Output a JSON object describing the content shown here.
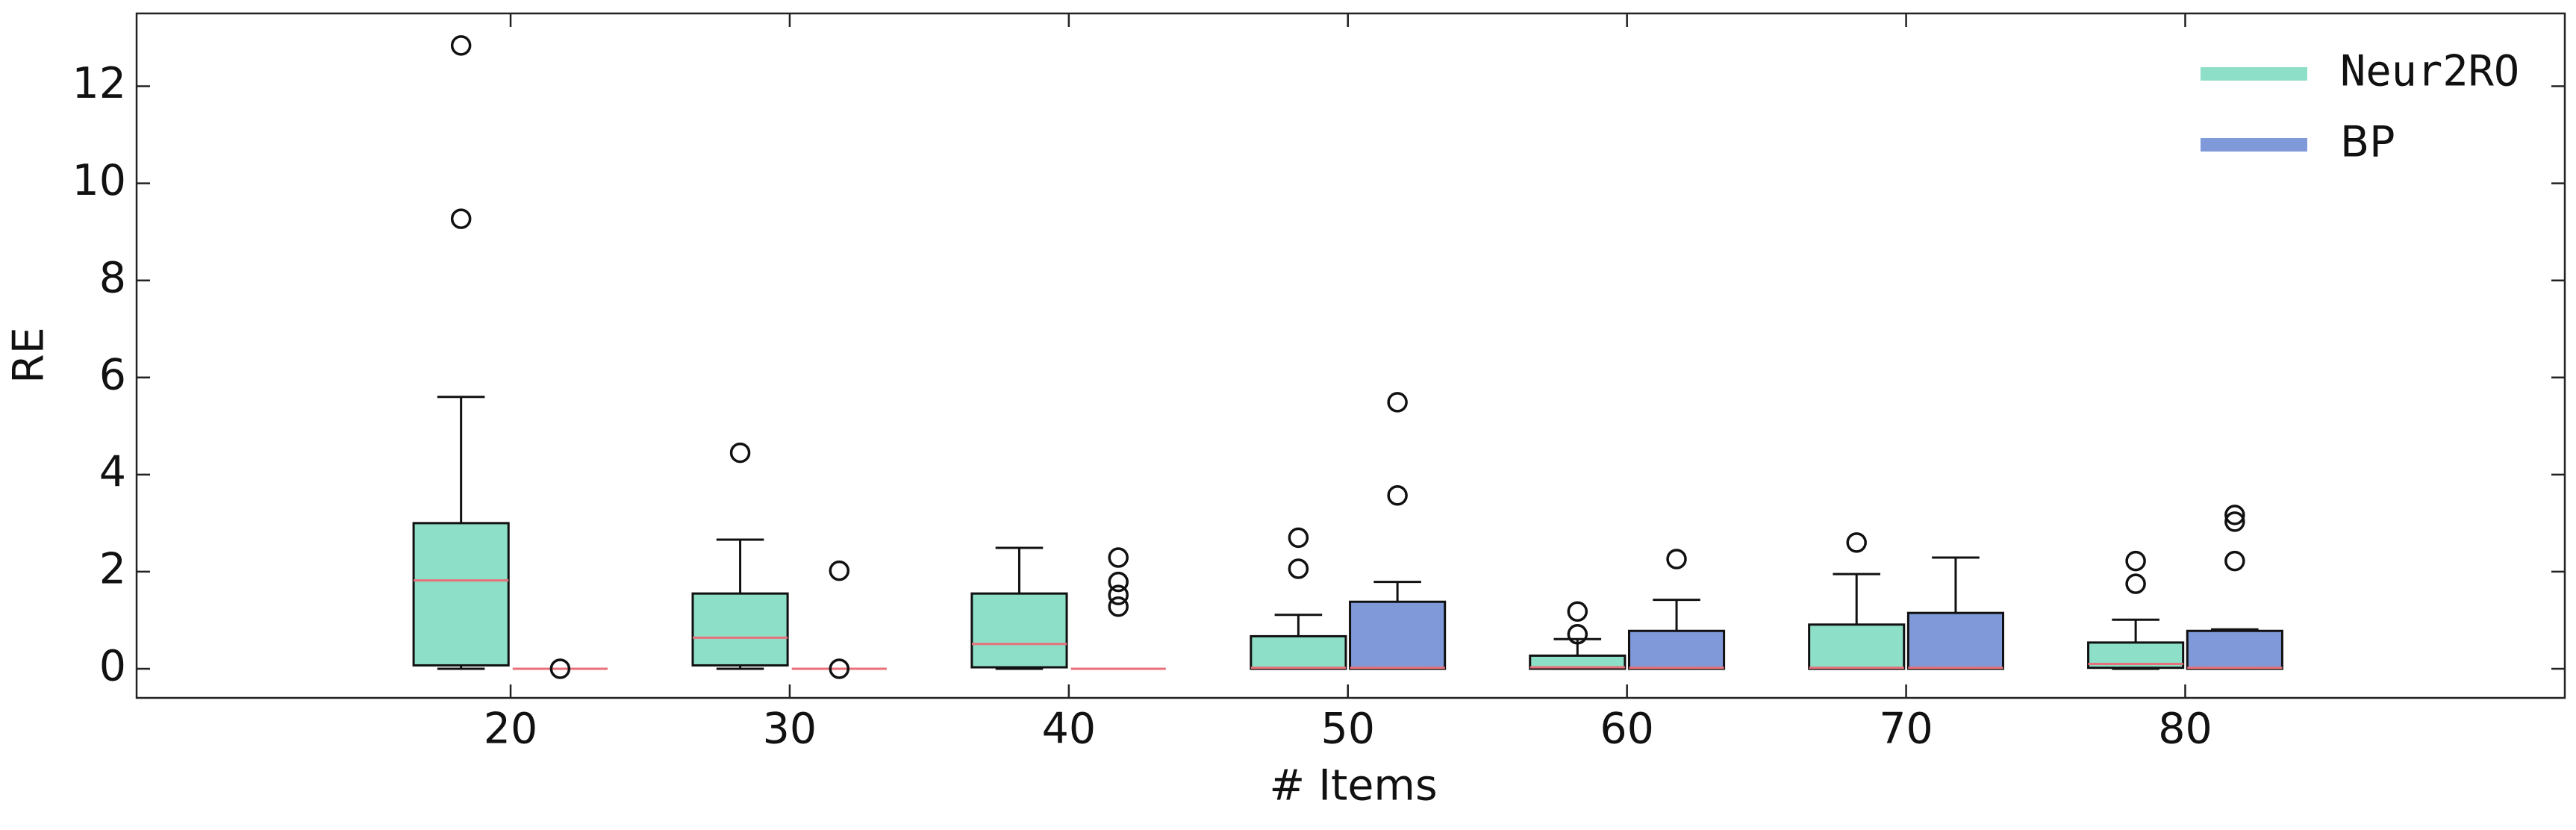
{
  "chart_data": {
    "type": "box",
    "x_label": "# Items",
    "y_label": "RE",
    "x": [
      20,
      30,
      40,
      50,
      60,
      70,
      80
    ],
    "xlim": [
      6.6,
      93.6
    ],
    "xticks": [
      20,
      30,
      40,
      50,
      60,
      70,
      80
    ],
    "ylim": [
      -0.6,
      13.5
    ],
    "yticks": [
      0,
      2,
      4,
      6,
      8,
      10,
      12
    ],
    "legend": "upper right",
    "median_color": "#e8707a",
    "series": [
      {
        "name": "Neur2RO",
        "color": "#8ddfc8",
        "boxes": [
          {
            "whislo": 0,
            "q1": 0.07,
            "med": 1.82,
            "q3": 3.0,
            "whishi": 5.6,
            "fliers": [
              12.84,
              9.27
            ]
          },
          {
            "whislo": 0,
            "q1": 0.07,
            "med": 0.64,
            "q3": 1.55,
            "whishi": 2.66,
            "fliers": [
              4.45
            ]
          },
          {
            "whislo": 0,
            "q1": 0.03,
            "med": 0.51,
            "q3": 1.55,
            "whishi": 2.49,
            "fliers": []
          },
          {
            "whislo": 0,
            "q1": 0,
            "med": 0.02,
            "q3": 0.67,
            "whishi": 1.11,
            "fliers": [
              2.7,
              2.06
            ]
          },
          {
            "whislo": 0,
            "q1": 0,
            "med": 0.03,
            "q3": 0.27,
            "whishi": 0.61,
            "fliers": [
              1.18,
              0.71
            ]
          },
          {
            "whislo": 0,
            "q1": 0,
            "med": 0.02,
            "q3": 0.91,
            "whishi": 1.95,
            "fliers": [
              2.6
            ]
          },
          {
            "whislo": 0,
            "q1": 0.02,
            "med": 0.1,
            "q3": 0.54,
            "whishi": 1.01,
            "fliers": [
              2.22,
              1.75
            ]
          }
        ]
      },
      {
        "name": "BP",
        "color": "#8099d8",
        "boxes": [
          {
            "whislo": 0,
            "q1": 0,
            "med": 0,
            "q3": 0,
            "whishi": 0,
            "fliers": [
              0
            ]
          },
          {
            "whislo": 0,
            "q1": 0,
            "med": 0,
            "q3": 0,
            "whishi": 0,
            "fliers": [
              2.02,
              0
            ]
          },
          {
            "whislo": 0,
            "q1": 0,
            "med": 0,
            "q3": 0,
            "whishi": 0,
            "fliers": [
              2.29,
              1.79,
              1.52,
              1.28
            ]
          },
          {
            "whislo": 0,
            "q1": 0,
            "med": 0.02,
            "q3": 1.38,
            "whishi": 1.79,
            "fliers": [
              5.49,
              3.57
            ]
          },
          {
            "whislo": 0,
            "q1": 0,
            "med": 0.02,
            "q3": 0.78,
            "whishi": 1.42,
            "fliers": [
              2.26
            ]
          },
          {
            "whislo": 0,
            "q1": 0,
            "med": 0.02,
            "q3": 1.15,
            "whishi": 2.29,
            "fliers": []
          },
          {
            "whislo": 0,
            "q1": 0,
            "med": 0.02,
            "q3": 0.78,
            "whishi": 0.81,
            "fliers": [
              3.17,
              3.03,
              2.22
            ]
          }
        ]
      }
    ]
  }
}
